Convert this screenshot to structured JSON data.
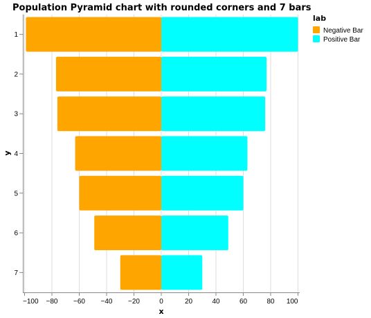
{
  "chart_data": {
    "type": "bar",
    "orientation": "horizontal",
    "title": "Population Pyramid chart with rounded corners and 7 bars",
    "xlabel": "x",
    "ylabel": "y",
    "xlim": [
      -105,
      100
    ],
    "x_ticks": [
      -100,
      -80,
      -60,
      -40,
      -20,
      0,
      20,
      40,
      60,
      80,
      100
    ],
    "grid": true,
    "categories": [
      "1",
      "2",
      "3",
      "4",
      "5",
      "6",
      "7"
    ],
    "series": [
      {
        "name": "Negative Bar",
        "color": "#FFA500",
        "values": [
          -99,
          -77,
          -76,
          -63,
          -60,
          -49,
          -30
        ]
      },
      {
        "name": "Positive Bar",
        "color": "#00FFFF",
        "values": [
          100,
          77,
          76,
          63,
          60,
          49,
          30
        ]
      }
    ],
    "legend": {
      "title": "lab",
      "position": "top-right"
    }
  }
}
